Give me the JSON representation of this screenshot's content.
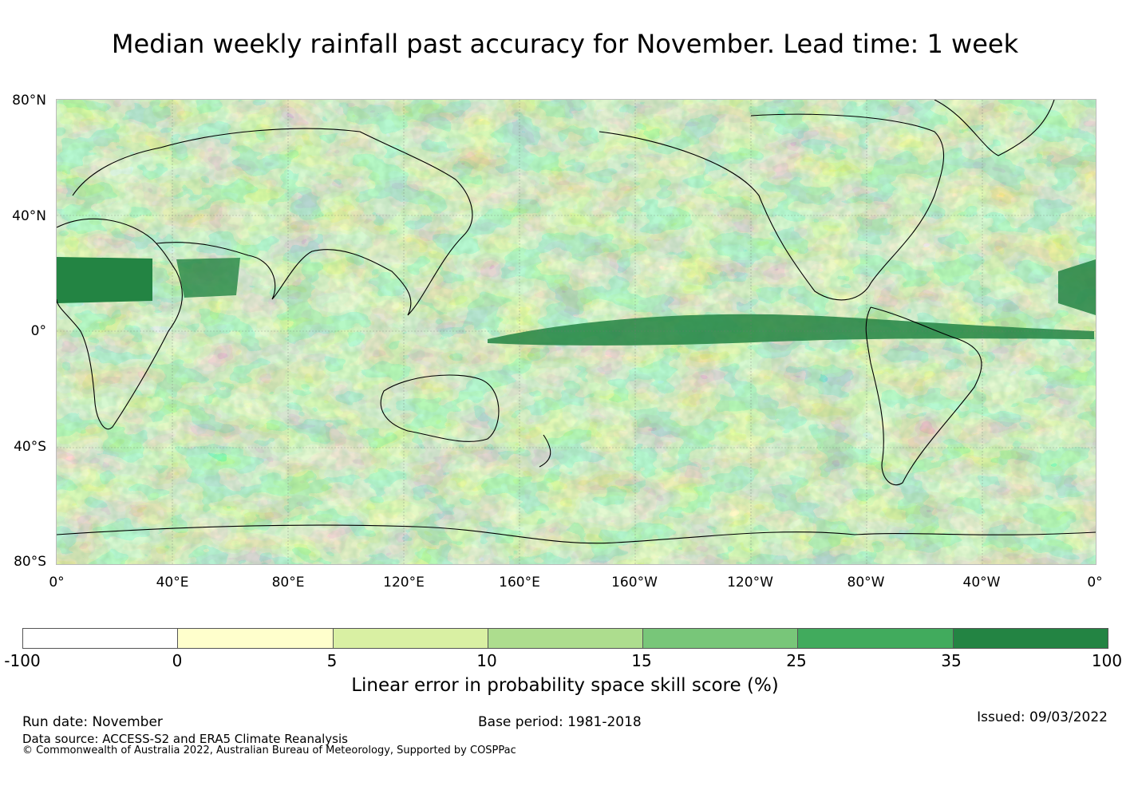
{
  "title": "Median weekly rainfall past accuracy for November. Lead time: 1 week",
  "map": {
    "lat_labels": [
      "80°N",
      "40°N",
      "0°",
      "40°S",
      "80°S"
    ],
    "lon_labels": [
      "0°",
      "40°E",
      "80°E",
      "120°E",
      "160°E",
      "160°W",
      "120°W",
      "80°W",
      "40°W",
      "0°"
    ],
    "background_color": "#c7e69a"
  },
  "colorbar": {
    "ticks": [
      "-100",
      "0",
      "5",
      "10",
      "15",
      "25",
      "35",
      "100"
    ],
    "colors": [
      "#ffffff",
      "#ffffcc",
      "#d9f0a3",
      "#addd8e",
      "#78c679",
      "#41ab5d",
      "#238443"
    ],
    "label": "Linear error in probability space skill score (%)"
  },
  "footer": {
    "run_date": "Run date: November",
    "base_period": "Base period: 1981-2018",
    "issued": "Issued: 09/03/2022",
    "data_source": "Data source: ACCESS-S2 and ERA5 Climate Reanalysis",
    "copyright": "© Commonwealth of Australia 2022, Australian Bureau of Meteorology, Supported by COSPPac"
  }
}
